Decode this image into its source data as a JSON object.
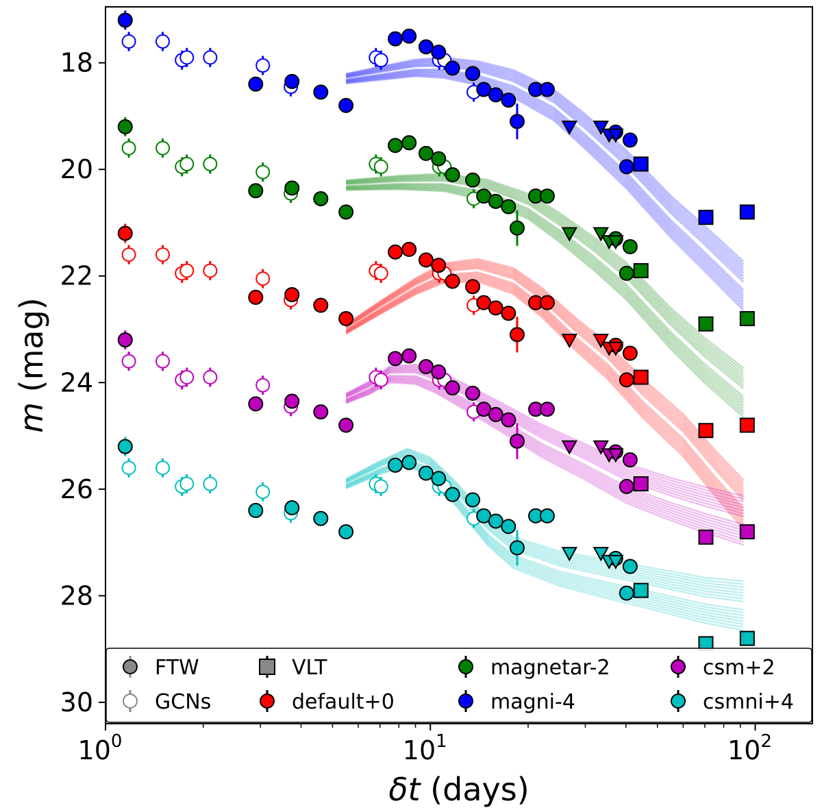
{
  "chart_data": {
    "type": "scatter",
    "xlabel_sym": "δt",
    "xlabel_unit": " (days)",
    "ylabel_sym": "m",
    "ylabel_unit": " (mag)",
    "x_scale": "log",
    "xlim": [
      1.0,
      150
    ],
    "ylim": [
      30.4,
      16.95
    ],
    "y_inverted": true,
    "x_ticks": [
      {
        "v": 1,
        "label": "10",
        "exp": "0"
      },
      {
        "v": 10,
        "label": "10",
        "exp": "1"
      },
      {
        "v": 100,
        "label": "10",
        "exp": "2"
      }
    ],
    "y_ticks": [
      18,
      20,
      22,
      24,
      26,
      28,
      30
    ],
    "grid": false,
    "legend_position": "bottom",
    "legend": [
      {
        "label": "FTW",
        "kind": "filled-circle",
        "color": "#888888"
      },
      {
        "label": "GCNs",
        "kind": "open-circle",
        "color": "#888888"
      },
      {
        "label": "VLT",
        "kind": "square",
        "color": "#888888"
      },
      {
        "label": "default+0",
        "kind": "filled-circle",
        "color": "#ff0000"
      },
      {
        "label": "magnetar-2",
        "kind": "filled-circle",
        "color": "#008000"
      },
      {
        "label": "magni-4",
        "kind": "filled-circle",
        "color": "#0000ff"
      },
      {
        "label": "csm+2",
        "kind": "filled-circle",
        "color": "#bf00bf"
      },
      {
        "label": "csmni+4",
        "kind": "filled-circle",
        "color": "#00bfbf"
      }
    ],
    "series": [
      {
        "name": "magni-4",
        "color": "#0000ff",
        "offset": -4,
        "model": [
          [
            5.5,
            18.3
          ],
          [
            7,
            18.2
          ],
          [
            9,
            18.1
          ],
          [
            11,
            18.1
          ],
          [
            14,
            18.2
          ],
          [
            18,
            18.4
          ],
          [
            24,
            18.8
          ],
          [
            30,
            19.3
          ],
          [
            40,
            20.0
          ],
          [
            55,
            20.9
          ],
          [
            70,
            21.5
          ],
          [
            92,
            22.2
          ]
        ]
      },
      {
        "name": "magnetar-2",
        "color": "#008000",
        "offset": -2,
        "model": [
          [
            5.5,
            20.3
          ],
          [
            8,
            20.25
          ],
          [
            11,
            20.25
          ],
          [
            15,
            20.4
          ],
          [
            20,
            20.7
          ],
          [
            25,
            21.1
          ],
          [
            32,
            21.6
          ],
          [
            40,
            22.1
          ],
          [
            55,
            23.0
          ],
          [
            70,
            23.6
          ],
          [
            92,
            24.2
          ]
        ]
      },
      {
        "name": "default+0",
        "color": "#ff0000",
        "offset": 0,
        "model": [
          [
            5.5,
            23.0
          ],
          [
            7,
            22.6
          ],
          [
            9,
            22.2
          ],
          [
            11,
            21.95
          ],
          [
            14,
            21.9
          ],
          [
            18,
            22.1
          ],
          [
            22,
            22.5
          ],
          [
            28,
            23.1
          ],
          [
            35,
            23.6
          ],
          [
            45,
            24.3
          ],
          [
            60,
            25.0
          ],
          [
            75,
            25.7
          ],
          [
            92,
            26.3
          ]
        ]
      },
      {
        "name": "csm+2",
        "color": "#bf00bf",
        "offset": 2,
        "model": [
          [
            5.5,
            24.3
          ],
          [
            6.5,
            24.1
          ],
          [
            7.5,
            23.85
          ],
          [
            9,
            23.85
          ],
          [
            10.5,
            24.0
          ],
          [
            13,
            24.3
          ],
          [
            17,
            24.7
          ],
          [
            22,
            25.1
          ],
          [
            30,
            25.5
          ],
          [
            40,
            25.9
          ],
          [
            55,
            26.2
          ],
          [
            70,
            26.4
          ],
          [
            92,
            26.6
          ]
        ]
      },
      {
        "name": "csmni+4",
        "color": "#00bfbf",
        "offset": 4,
        "model": [
          [
            5.5,
            25.9
          ],
          [
            7,
            25.6
          ],
          [
            8.5,
            25.4
          ],
          [
            10,
            25.6
          ],
          [
            12,
            26.1
          ],
          [
            15,
            26.8
          ],
          [
            18,
            27.2
          ],
          [
            25,
            27.5
          ],
          [
            35,
            27.7
          ],
          [
            50,
            27.9
          ],
          [
            70,
            28.1
          ],
          [
            92,
            28.2
          ]
        ]
      }
    ],
    "ftw_points": [
      [
        1.15,
        17.2
      ],
      [
        2.9,
        18.4
      ],
      [
        3.75,
        18.35
      ],
      [
        4.6,
        18.55
      ],
      [
        5.5,
        18.8
      ],
      [
        7.8,
        17.55
      ],
      [
        8.6,
        17.5
      ],
      [
        9.7,
        17.7
      ],
      [
        10.6,
        17.8
      ],
      [
        11.7,
        18.1
      ],
      [
        13.5,
        18.2
      ],
      [
        14.6,
        18.5
      ],
      [
        15.9,
        18.6
      ],
      [
        17.4,
        18.7
      ],
      [
        18.5,
        19.1
      ],
      [
        21.1,
        18.5
      ],
      [
        22.9,
        18.5
      ],
      [
        37.2,
        19.3
      ],
      [
        40.2,
        19.95
      ],
      [
        41.2,
        19.45
      ]
    ],
    "gcn_points": [
      [
        1.15,
        17.2
      ],
      [
        1.18,
        17.6
      ],
      [
        1.5,
        17.6
      ],
      [
        1.72,
        17.95
      ],
      [
        1.78,
        17.9
      ],
      [
        2.1,
        17.9
      ],
      [
        3.05,
        18.05
      ],
      [
        3.72,
        18.45
      ],
      [
        6.8,
        17.9
      ],
      [
        7.05,
        17.95
      ],
      [
        10.65,
        17.95
      ],
      [
        11.05,
        17.95
      ],
      [
        13.6,
        18.55
      ]
    ],
    "vlt_points": [
      [
        44.5,
        19.9
      ],
      [
        70.5,
        20.9
      ],
      [
        94.5,
        20.8
      ]
    ],
    "upper_limits": [
      [
        26.8,
        19.2
      ],
      [
        33.5,
        19.2
      ],
      [
        35.5,
        19.35
      ],
      [
        37.2,
        19.35
      ]
    ]
  }
}
